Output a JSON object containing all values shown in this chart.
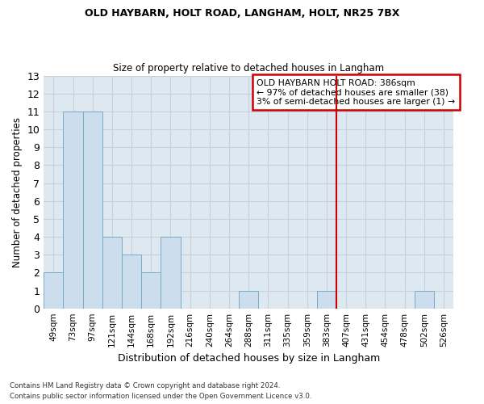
{
  "title": "OLD HAYBARN, HOLT ROAD, LANGHAM, HOLT, NR25 7BX",
  "subtitle": "Size of property relative to detached houses in Langham",
  "xlabel": "Distribution of detached houses by size in Langham",
  "ylabel": "Number of detached properties",
  "categories": [
    "49sqm",
    "73sqm",
    "97sqm",
    "121sqm",
    "144sqm",
    "168sqm",
    "192sqm",
    "216sqm",
    "240sqm",
    "264sqm",
    "288sqm",
    "311sqm",
    "335sqm",
    "359sqm",
    "383sqm",
    "407sqm",
    "431sqm",
    "454sqm",
    "478sqm",
    "502sqm",
    "526sqm"
  ],
  "values": [
    2,
    11,
    11,
    4,
    3,
    2,
    4,
    0,
    0,
    0,
    1,
    0,
    0,
    0,
    1,
    0,
    0,
    0,
    0,
    1,
    0
  ],
  "bar_color": "#ccdded",
  "bar_edge_color": "#7aaac8",
  "vline_x_index": 14.5,
  "vline_color": "#cc0000",
  "annotation_title": "OLD HAYBARN HOLT ROAD: 386sqm",
  "annotation_line1": "← 97% of detached houses are smaller (38)",
  "annotation_line2": "3% of semi-detached houses are larger (1) →",
  "annotation_box_color": "#cc0000",
  "ylim": [
    0,
    13
  ],
  "yticks": [
    0,
    1,
    2,
    3,
    4,
    5,
    6,
    7,
    8,
    9,
    10,
    11,
    12,
    13
  ],
  "grid_color": "#c8d0da",
  "background_color": "#dde8f0",
  "fig_background_color": "#ffffff",
  "footer_line1": "Contains HM Land Registry data © Crown copyright and database right 2024.",
  "footer_line2": "Contains public sector information licensed under the Open Government Licence v3.0."
}
